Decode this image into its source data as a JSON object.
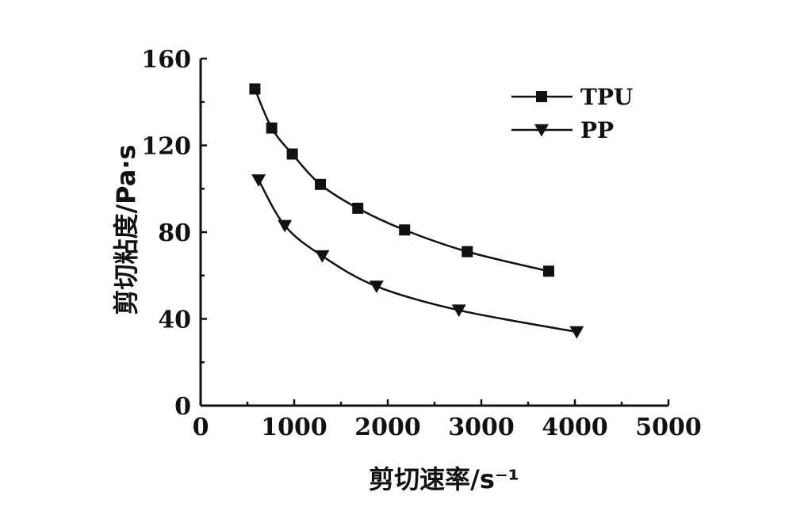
{
  "chart_data": {
    "type": "line",
    "xlabel": "剪切速率/s⁻¹",
    "ylabel": "剪切粘度/Pa·s",
    "xlim": [
      0,
      5000
    ],
    "ylim": [
      0,
      160
    ],
    "x_ticks": [
      0,
      1000,
      2000,
      3000,
      4000,
      5000
    ],
    "y_ticks": [
      0,
      40,
      80,
      120,
      160
    ],
    "x_tick_labels": [
      "0",
      "1000",
      "2000",
      "3000",
      "4000",
      "5000"
    ],
    "y_tick_labels": [
      "0",
      "40",
      "80",
      "120",
      "160"
    ],
    "grid": false,
    "legend_position": "top-right",
    "series": [
      {
        "name": "TPU",
        "marker": "square",
        "color": "#111111",
        "points": [
          {
            "x": 580,
            "y": 146
          },
          {
            "x": 760,
            "y": 128
          },
          {
            "x": 980,
            "y": 116
          },
          {
            "x": 1280,
            "y": 102
          },
          {
            "x": 1680,
            "y": 91
          },
          {
            "x": 2180,
            "y": 81
          },
          {
            "x": 2850,
            "y": 71
          },
          {
            "x": 3720,
            "y": 62
          }
        ]
      },
      {
        "name": "PP",
        "marker": "triangle-down",
        "color": "#111111",
        "points": [
          {
            "x": 620,
            "y": 104
          },
          {
            "x": 900,
            "y": 83
          },
          {
            "x": 1300,
            "y": 69
          },
          {
            "x": 1880,
            "y": 55
          },
          {
            "x": 2760,
            "y": 44
          },
          {
            "x": 4020,
            "y": 34
          }
        ]
      }
    ]
  }
}
